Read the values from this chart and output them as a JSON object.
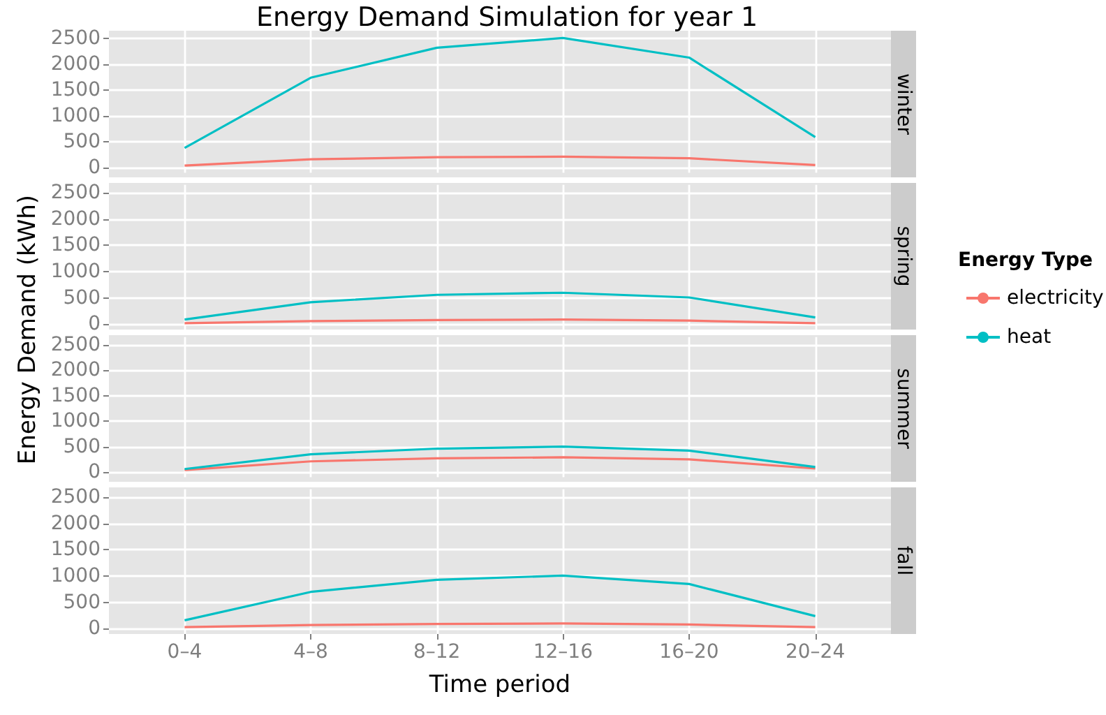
{
  "chart_data": [
    {
      "type": "line",
      "title": "Energy Demand Simulation for year 1",
      "subtitle": "winter",
      "ylabel": "Energy Demand (kWh)",
      "series": [
        {
          "color": "#f8766d",
          "values": [
            40,
            160,
            200,
            210,
            180,
            50
          ]
        },
        {
          "color": "#00bfc4",
          "values": [
            380,
            1740,
            2320,
            2510,
            2130,
            590
          ]
        }
      ],
      "ylim": [
        -100,
        2650
      ],
      "yticks": [
        0,
        500,
        1000,
        1500,
        2000,
        2500
      ],
      "grid": true,
      "tick_labels": "y"
    },
    {
      "type": "line",
      "subtitle": "spring",
      "legend_title": "Energy Type",
      "legend": "right",
      "series": [
        {
          "name": "electricity",
          "color": "#f8766d",
          "values": [
            20,
            60,
            80,
            90,
            70,
            20
          ]
        },
        {
          "name": "heat",
          "color": "#00bfc4",
          "values": [
            90,
            420,
            560,
            600,
            510,
            130
          ]
        }
      ],
      "ylim": [
        -100,
        2650
      ],
      "yticks": [
        0,
        500,
        1000,
        1500,
        2000,
        2500
      ],
      "grid": true,
      "tick_labels": "y"
    },
    {
      "type": "line",
      "subtitle": "summer",
      "series": [
        {
          "color": "#f8766d",
          "values": [
            40,
            210,
            270,
            290,
            250,
            70
          ]
        },
        {
          "color": "#00bfc4",
          "values": [
            60,
            350,
            460,
            500,
            420,
            100
          ]
        }
      ],
      "ylim": [
        -100,
        2650
      ],
      "yticks": [
        0,
        500,
        1000,
        1500,
        2000,
        2500
      ],
      "grid": true,
      "tick_labels": "y"
    },
    {
      "type": "line",
      "subtitle": "fall",
      "xlabel": "Time period",
      "categories": [
        "0–4",
        "4–8",
        "8–12",
        "12–16",
        "16–20",
        "20–24"
      ],
      "series": [
        {
          "color": "#f8766d",
          "values": [
            30,
            70,
            90,
            100,
            80,
            30
          ]
        },
        {
          "color": "#00bfc4",
          "values": [
            160,
            700,
            930,
            1010,
            850,
            240
          ]
        }
      ],
      "ylim": [
        -100,
        2650
      ],
      "yticks": [
        0,
        500,
        1000,
        1500,
        2000,
        2500
      ],
      "grid": true
    }
  ]
}
